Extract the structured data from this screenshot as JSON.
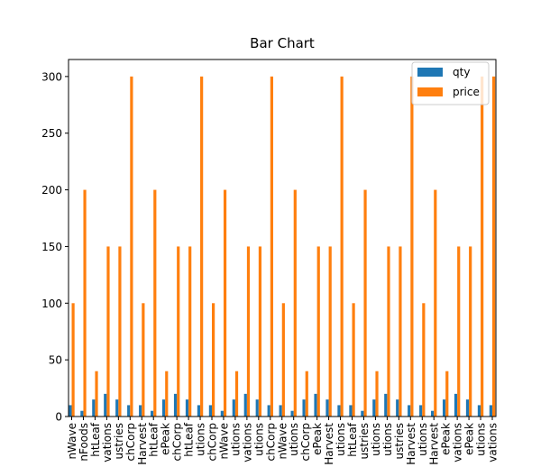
{
  "chart_data": {
    "type": "bar",
    "title": "Bar Chart",
    "xlabel": "",
    "ylabel": "",
    "ylim": [
      0,
      315
    ],
    "yticks": [
      0,
      50,
      100,
      150,
      200,
      250,
      300
    ],
    "grid": false,
    "legend_position": "top-right",
    "categories": [
      "nWave",
      "nFoods",
      "htLeaf",
      "vations",
      "ustries",
      "chCorp",
      "Harvest",
      "htLeaf",
      "ePeak",
      "chCorp",
      "htLeaf",
      "utions",
      "chCorp",
      "nWave",
      "utions",
      "vations",
      "utions",
      "chCorp",
      "nWave",
      "utions",
      "chCorp",
      "ePeak",
      "Harvest",
      "utions",
      "htLeaf",
      "ustries",
      "utions",
      "utions",
      "ustries",
      "Harvest",
      "utions",
      "Harvest",
      "ePeak",
      "vations",
      "ePeak",
      "utions",
      "vations"
    ],
    "series": [
      {
        "name": "qty",
        "color": "#1f77b4",
        "values": [
          10,
          5,
          15,
          20,
          15,
          10,
          10,
          5,
          15,
          20,
          15,
          10,
          10,
          5,
          15,
          20,
          15,
          10,
          10,
          5,
          15,
          20,
          15,
          10,
          10,
          5,
          15,
          20,
          15,
          10,
          10,
          5,
          15,
          20,
          15,
          10,
          10
        ]
      },
      {
        "name": "price",
        "color": "#ff7f0e",
        "values": [
          100,
          200,
          40,
          150,
          150,
          300,
          100,
          200,
          40,
          150,
          150,
          300,
          100,
          200,
          40,
          150,
          150,
          300,
          100,
          200,
          40,
          150,
          150,
          300,
          100,
          200,
          40,
          150,
          150,
          300,
          100,
          200,
          40,
          150,
          150,
          300,
          300
        ]
      }
    ]
  }
}
